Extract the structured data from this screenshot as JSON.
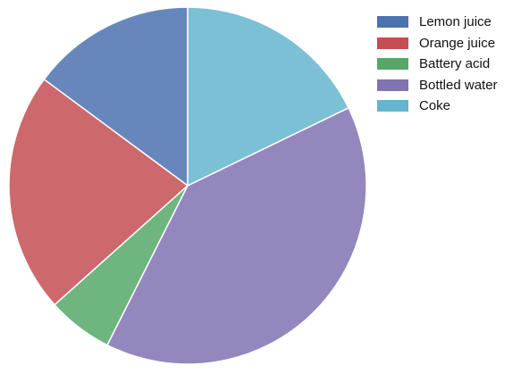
{
  "chart_data": {
    "type": "pie",
    "title": "",
    "start_angle_deg": 90,
    "direction": "counterclockwise",
    "slices": [
      {
        "label": "Lemon juice",
        "value": 15,
        "color": "#4C72B0"
      },
      {
        "label": "Orange juice",
        "value": 22,
        "color": "#C44E52"
      },
      {
        "label": "Battery acid",
        "value": 6,
        "color": "#55A868"
      },
      {
        "label": "Bottled water",
        "value": 40,
        "color": "#8172B2"
      },
      {
        "label": "Coke",
        "value": 18,
        "color": "#64B5CD"
      }
    ],
    "legend": {
      "position": "top-right"
    }
  }
}
